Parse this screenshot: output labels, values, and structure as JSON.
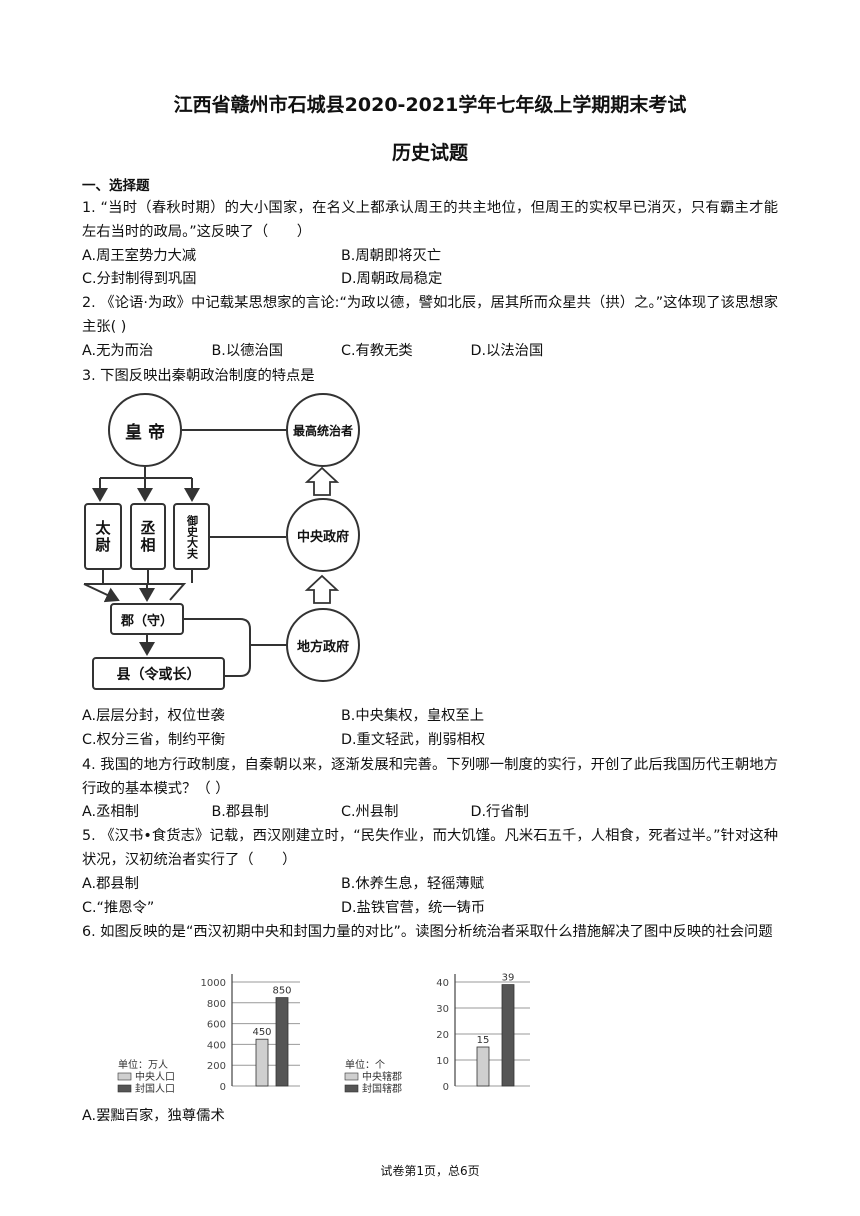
{
  "header": {
    "title": "江西省赣州市石城县2020-2021学年七年级上学期期末考试",
    "subtitle": "历史试题"
  },
  "section": "一、选择题",
  "questions": [
    {
      "stem": "1. “当时（春秋时期）的大小国家，在名义上都承认周王的共主地位，但周王的实权早已消灭，只有霸主才能左右当时的政局。”这反映了（　　）",
      "options": [
        "A.周王室势力大减",
        "B.周朝即将灭亡",
        "C.分封制得到巩固",
        "D.周朝政局稳定"
      ]
    },
    {
      "stem": "2. 《论语·为政》中记载某思想家的言论:“为政以德，譬如北辰，居其所而众星共（拱）之。”这体现了该思想家主张( )",
      "options": [
        "A.无为而治",
        "B.以德治国",
        "C.有教无类",
        "D.以法治国"
      ]
    },
    {
      "stem": "3. 下图反映出秦朝政治制度的特点是",
      "options": [
        "A.层层分封，权位世袭",
        "B.中央集权，皇权至上",
        "C.权分三省，制约平衡",
        "D.重文轻武，削弱相权"
      ]
    },
    {
      "stem": "4. 我国的地方行政制度，自秦朝以来，逐渐发展和完善。下列哪一制度的实行，开创了此后我国历代王朝地方行政的基本模式？（ ）",
      "options": [
        "A.丞相制",
        "B.郡县制",
        "C.州县制",
        "D.行省制"
      ]
    },
    {
      "stem": "5. 《汉书•食货志》记载，西汉刚建立时，“民失作业，而大饥馑。凡米石五千，人相食，死者过半。”针对这种状况，汉初统治者实行了（　　）",
      "options": [
        "A.郡县制",
        "B.休养生息，轻徭薄赋",
        "C.“推恩令”",
        "D.盐铁官营，统一铸币"
      ]
    },
    {
      "stem": "6. 如图反映的是“西汉初期中央和封国力量的对比”。读图分析统治者采取什么措施解决了图中反映的社会问题",
      "options": [
        "A.罢黜百家，独尊儒术"
      ]
    }
  ],
  "diagram": {
    "emperor": "皇 帝",
    "supreme": "最高统治者",
    "central": "中央政府",
    "local": "地方政府",
    "officials": [
      "太尉",
      "丞相",
      "御史大夫"
    ],
    "commandery": "郡（守）",
    "county": "县（令或长）"
  },
  "charts": [
    {
      "unit": "单位：万人",
      "ylim": [
        0,
        1000
      ],
      "yticks": [
        0,
        200,
        400,
        600,
        800,
        1000
      ],
      "series": [
        {
          "name": "中央人口",
          "color": "#cfcfcf",
          "value": 450
        },
        {
          "name": "封国人口",
          "color": "#555555",
          "value": 850
        }
      ]
    },
    {
      "unit": "单位：个",
      "ylim": [
        0,
        40
      ],
      "yticks": [
        0,
        10,
        20,
        30,
        40
      ],
      "series": [
        {
          "name": "中央辖郡",
          "color": "#cfcfcf",
          "value": 15
        },
        {
          "name": "封国辖郡",
          "color": "#555555",
          "value": 39
        }
      ]
    }
  ],
  "footer": "试卷第1页，总6页"
}
